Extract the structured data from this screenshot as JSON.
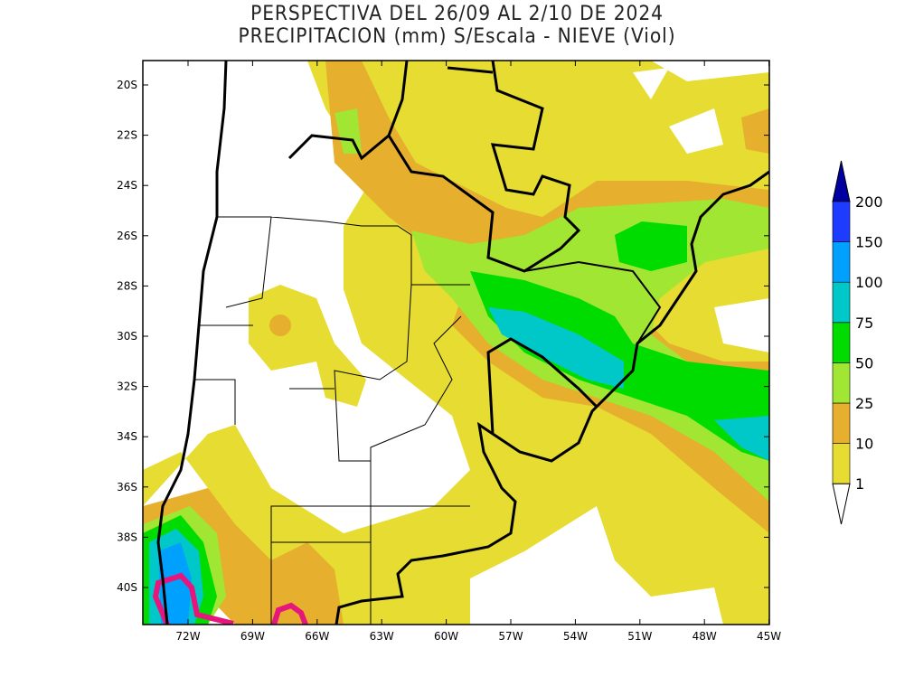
{
  "title": {
    "line1": "PERSPECTIVA DEL 26/09 AL 2/10 DE 2024",
    "line2": "PRECIPITACION (mm) S/Escala - NIEVE (Viol)"
  },
  "lat_ticks": [
    "20S",
    "22S",
    "24S",
    "26S",
    "28S",
    "30S",
    "32S",
    "34S",
    "36S",
    "38S",
    "40S"
  ],
  "lon_ticks": [
    "72W",
    "69W",
    "66W",
    "63W",
    "60W",
    "57W",
    "54W",
    "51W",
    "48W",
    "45W"
  ],
  "legend": {
    "levels": [
      "1",
      "10",
      "25",
      "50",
      "75",
      "100",
      "150",
      "200"
    ],
    "colors": [
      "#e6dc32",
      "#e6af2d",
      "#a0e632",
      "#00dc00",
      "#00c8c8",
      "#00a0ff",
      "#1e3cff",
      "#0000a0"
    ],
    "snow_color": "#e6167d"
  }
}
